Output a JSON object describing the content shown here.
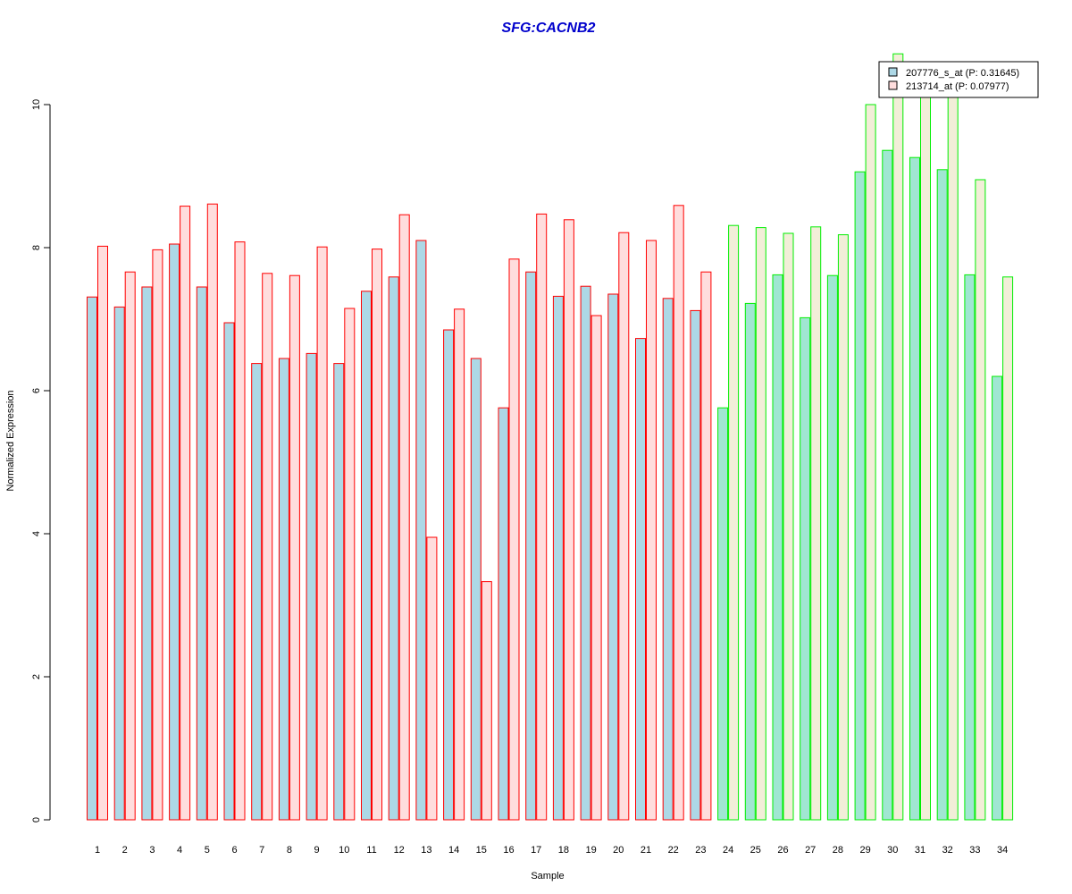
{
  "chart_data": {
    "type": "bar",
    "title": "SFG:CACNB2",
    "xlabel": "Sample",
    "ylabel": "Normalized Expression",
    "ylim": [
      0,
      10.9
    ],
    "yticks": [
      0,
      2,
      4,
      6,
      8,
      10
    ],
    "categories": [
      "1",
      "2",
      "3",
      "4",
      "5",
      "6",
      "7",
      "8",
      "9",
      "10",
      "11",
      "12",
      "13",
      "14",
      "15",
      "16",
      "17",
      "18",
      "19",
      "20",
      "21",
      "22",
      "23",
      "24",
      "25",
      "26",
      "27",
      "28",
      "29",
      "30",
      "31",
      "32",
      "33",
      "34"
    ],
    "series": [
      {
        "name": "207776_s_at (P: 0.31645)",
        "fill": "#add8e6",
        "values": [
          7.31,
          7.17,
          7.45,
          8.05,
          7.45,
          6.95,
          6.38,
          6.45,
          6.52,
          6.38,
          7.39,
          7.59,
          8.1,
          6.85,
          6.45,
          5.76,
          7.66,
          7.32,
          7.46,
          7.35,
          6.73,
          7.29,
          7.12,
          5.76,
          7.22,
          7.62,
          7.02,
          7.61,
          9.06,
          9.36,
          9.26,
          9.09,
          7.62,
          6.2
        ]
      },
      {
        "name": "213714_at (P: 0.07977)",
        "fill": "#ffdddd",
        "values": [
          8.02,
          7.66,
          7.97,
          8.58,
          8.61,
          8.08,
          7.64,
          7.61,
          8.01,
          7.15,
          7.98,
          8.46,
          3.95,
          7.14,
          3.33,
          7.84,
          8.47,
          8.39,
          7.05,
          8.21,
          8.1,
          8.59,
          7.66,
          8.31,
          8.28,
          8.2,
          8.29,
          8.18,
          10.0,
          10.71,
          10.28,
          10.27,
          8.95,
          7.59
        ]
      }
    ],
    "group_colors": {
      "group_1": {
        "border": "#ff0000",
        "series1_fill": "#add8e6",
        "series2_fill": "#ffdddd"
      },
      "group_2": {
        "border": "#00ee00",
        "series1_fill": "#a0e6d2",
        "series2_fill": "#f2eed8"
      }
    },
    "group_2_start_index": 23,
    "legend_placement": "top-right",
    "grid": false
  }
}
